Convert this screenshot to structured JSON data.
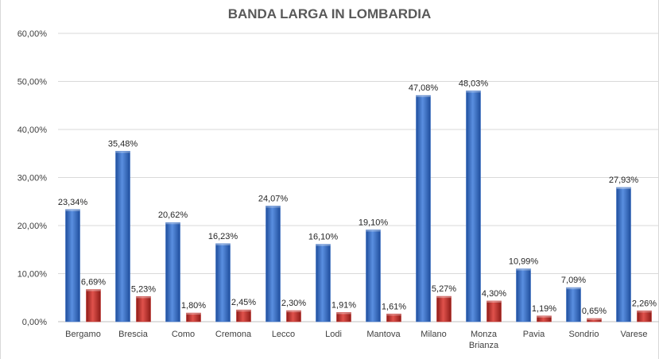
{
  "chart_data": {
    "type": "bar",
    "title": "BANDA LARGA IN LOMBARDIA",
    "categories": [
      [
        "Bergamo"
      ],
      [
        "Brescia"
      ],
      [
        "Como"
      ],
      [
        "Cremona"
      ],
      [
        "Lecco"
      ],
      [
        "Lodi"
      ],
      [
        "Mantova"
      ],
      [
        "Milano"
      ],
      [
        "Monza",
        "Brianza"
      ],
      [
        "Pavia"
      ],
      [
        "Sondrio"
      ],
      [
        "Varese"
      ]
    ],
    "series": [
      {
        "color": "#3a6fc4",
        "values": [
          23.34,
          35.48,
          20.62,
          16.23,
          24.07,
          16.1,
          19.1,
          47.08,
          48.03,
          10.99,
          7.09,
          27.93
        ],
        "labels": [
          "23,34%",
          "35,48%",
          "20,62%",
          "16,23%",
          "24,07%",
          "16,10%",
          "19,10%",
          "47,08%",
          "48,03%",
          "10,99%",
          "7,09%",
          "27,93%"
        ]
      },
      {
        "color": "#c0302b",
        "values": [
          6.69,
          5.23,
          1.8,
          2.45,
          2.3,
          1.91,
          1.61,
          5.27,
          4.3,
          1.19,
          0.65,
          2.26
        ],
        "labels": [
          "6,69%",
          "5,23%",
          "1,80%",
          "2,45%",
          "2,30%",
          "1,91%",
          "1,61%",
          "5,27%",
          "4,30%",
          "1,19%",
          "0,65%",
          "2,26%"
        ]
      }
    ],
    "ylim": [
      0,
      60
    ],
    "yticks": [
      0,
      10,
      20,
      30,
      40,
      50,
      60
    ],
    "ytick_labels": [
      "0,00%",
      "10,00%",
      "20,00%",
      "30,00%",
      "40,00%",
      "50,00%",
      "60,00%"
    ],
    "grid": true,
    "legend": "none"
  }
}
